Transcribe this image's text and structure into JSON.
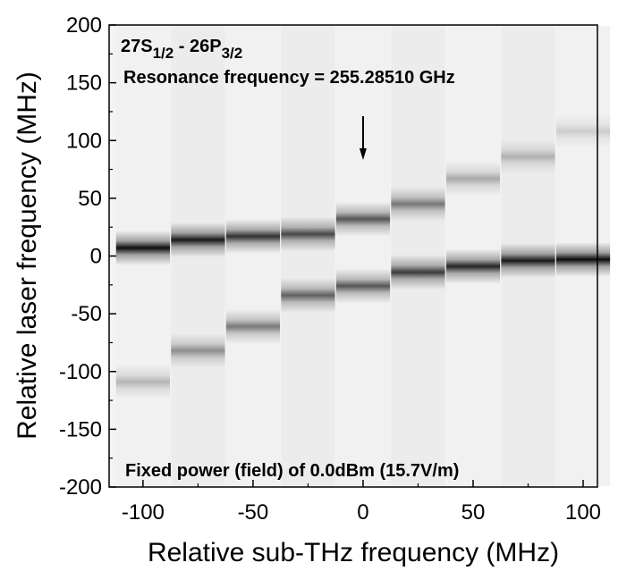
{
  "chart_data": {
    "type": "heatmap",
    "state_label": {
      "text1": "27S",
      "sub1": "1/2",
      "text2": " - 26P",
      "sub2": "3/2"
    },
    "subtitle": "Resonance frequency = 255.28510 GHz",
    "note": "Fixed power (field) of 0.0dBm (15.7V/m)",
    "xlabel": "Relative sub-THz frequency (MHz)",
    "ylabel": "Relative laser frequency (MHz)",
    "x": [
      -100,
      -75,
      -50,
      -25,
      0,
      25,
      50,
      75,
      100
    ],
    "peak_y": [
      [
        7,
        -109
      ],
      [
        14,
        -82
      ],
      [
        17,
        -61
      ],
      [
        19,
        -34
      ],
      [
        32,
        -26
      ],
      [
        45,
        -14
      ],
      [
        67,
        -9
      ],
      [
        86,
        -4
      ],
      [
        108,
        -3
      ]
    ],
    "peak_intensity": [
      [
        0.95,
        0.25
      ],
      [
        0.9,
        0.4
      ],
      [
        0.8,
        0.5
      ],
      [
        0.7,
        0.6
      ],
      [
        0.65,
        0.65
      ],
      [
        0.5,
        0.75
      ],
      [
        0.3,
        0.85
      ],
      [
        0.25,
        0.9
      ],
      [
        0.15,
        0.95
      ]
    ],
    "arrow": {
      "x": 0
    },
    "xlim": [
      -115.4,
      106.5
    ],
    "ylim": [
      -200,
      200
    ],
    "xticks": [
      -100,
      -50,
      0,
      50,
      100
    ],
    "yticks": [
      -200,
      -150,
      -100,
      -50,
      0,
      50,
      100,
      150,
      200
    ],
    "xminorticks": [
      -75,
      -25,
      25,
      75
    ],
    "yminorticks": [
      -175,
      -125,
      -75,
      -25,
      25,
      75,
      125,
      175
    ]
  }
}
